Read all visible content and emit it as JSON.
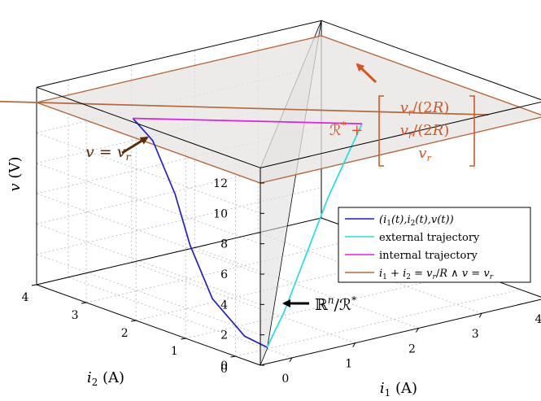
{
  "chart_data": {
    "type": "line3d",
    "xlabel": "i₁ (A)",
    "ylabel": "i₂ (A)",
    "zlabel": "v (V)",
    "xlim": [
      -0.5,
      4
    ],
    "ylim": [
      -0.5,
      4
    ],
    "zlim": [
      0,
      13
    ],
    "xticks": [
      0,
      1,
      2,
      3,
      4
    ],
    "yticks": [
      0,
      1,
      2,
      3,
      4
    ],
    "zticks": [
      0,
      2,
      4,
      6,
      8,
      10,
      12
    ],
    "grid": true,
    "legend_position": "right",
    "plane_level": 12,
    "series": [
      {
        "name": "(i₁(t),i₂(t),v(t))",
        "color": "#1f1fd0",
        "x": [
          0,
          0,
          0,
          0,
          0,
          0,
          0
        ],
        "y": [
          0,
          0.45,
          1.1,
          1.55,
          1.85,
          2.3,
          2.7
        ],
        "z": [
          0.1,
          0.3,
          2,
          5,
          8,
          11,
          12
        ]
      },
      {
        "name": "external trajectory",
        "color": "#20e0e0",
        "x": [
          0,
          0.35,
          0.7,
          1.05,
          1.4,
          1.75,
          2.05
        ],
        "y": [
          0,
          0.1,
          0.25,
          0.4,
          0.55,
          0.65,
          0.7
        ],
        "z": [
          0.1,
          2,
          4,
          6,
          8,
          10,
          12
        ]
      },
      {
        "name": "internal trajectory",
        "color": "#e020e0",
        "x": [
          0,
          2.05
        ],
        "y": [
          2.7,
          0.7
        ],
        "z": [
          12,
          12
        ]
      },
      {
        "name": "i₁ + i₂ = vᵣ/R ∧ v = vᵣ",
        "color": "#b5683c",
        "x": [
          -1,
          3.5
        ],
        "y": [
          4.5,
          0
        ],
        "z": [
          12,
          12
        ]
      }
    ],
    "annotations": {
      "plane_label": "v = vᵣ",
      "set_label_prefix": "ℛ* +",
      "vector_entries": [
        "vᵣ/(2R)",
        "vᵣ/(2R)",
        "vᵣ"
      ],
      "quotient_label": "ℝⁿ/ℛ*"
    }
  },
  "colors": {
    "plane_fill": "#e6e4e1",
    "plane_edge": "#b5683c",
    "arrow_dark": "#5a2d0c",
    "arrow_orange": "#d9541e",
    "wall_fill": "#dcdcdc"
  }
}
